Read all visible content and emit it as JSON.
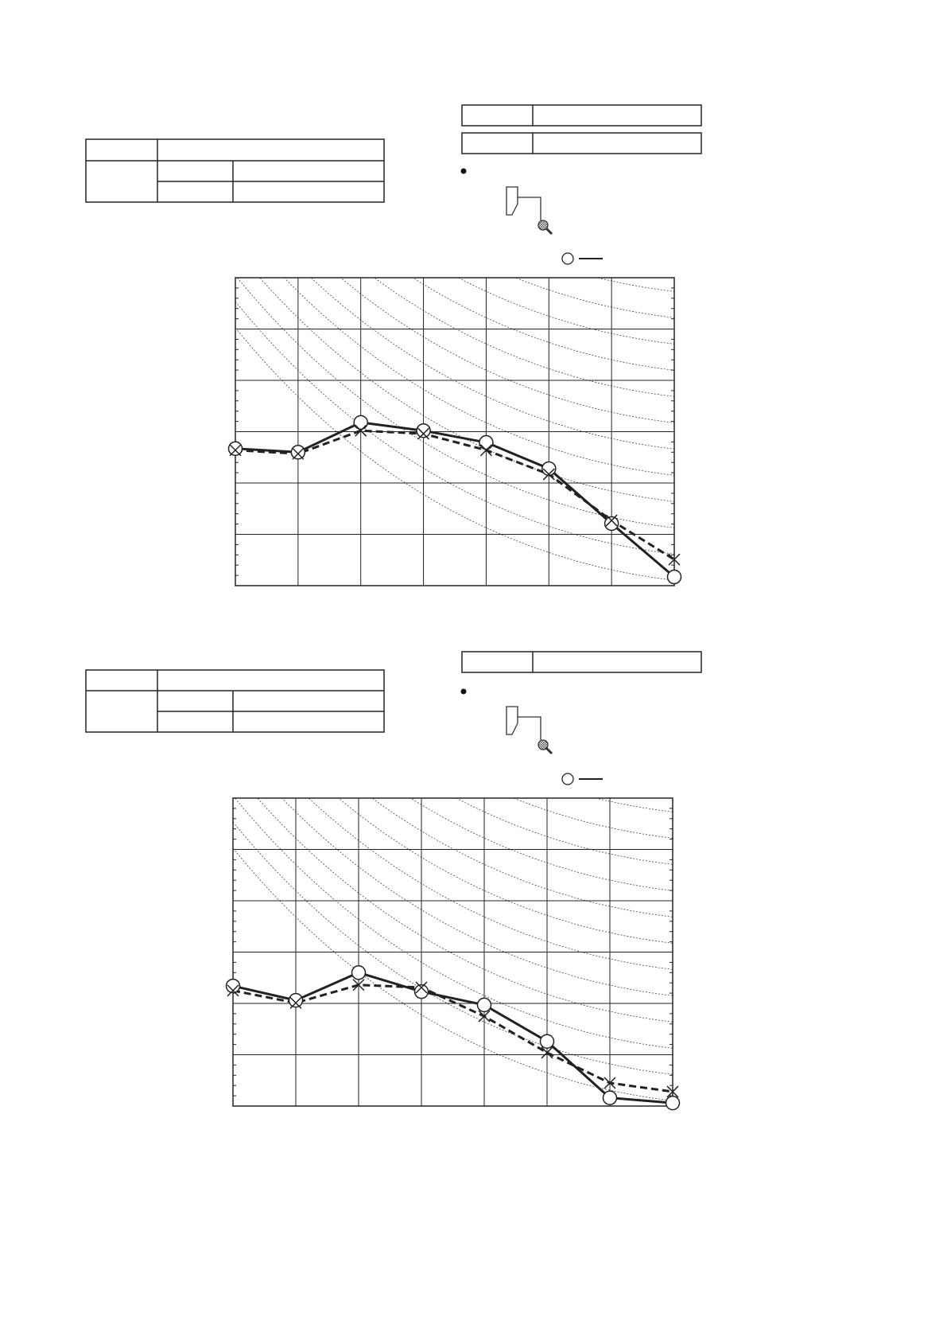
{
  "chart_data": [
    {
      "type": "line",
      "categories": [
        null,
        null,
        null,
        null,
        null,
        null,
        null,
        null
      ],
      "series": [
        {
          "color": "#222222",
          "dash": false,
          "marker": "circle",
          "values": [
            2.67,
            2.6,
            3.18,
            3.02,
            2.79,
            2.28,
            1.21,
            0.17
          ]
        },
        {
          "color": "#222222",
          "dash": true,
          "marker": "cross",
          "values": [
            2.64,
            2.57,
            3.02,
            2.96,
            2.64,
            2.17,
            1.27,
            0.51
          ]
        }
      ],
      "ylim": [
        0,
        6
      ],
      "yticks": [
        0,
        1,
        2,
        3,
        4,
        5,
        6
      ],
      "grid": true,
      "tick_labels": false,
      "minor_per_major": 5
    },
    {
      "type": "line",
      "categories": [
        null,
        null,
        null,
        null,
        null,
        null,
        null,
        null
      ],
      "series": [
        {
          "color": "#222222",
          "dash": false,
          "marker": "circle",
          "values": [
            2.34,
            2.06,
            2.6,
            2.23,
            1.97,
            1.26,
            0.16,
            0.06
          ]
        },
        {
          "color": "#222222",
          "dash": true,
          "marker": "cross",
          "values": [
            2.25,
            2.01,
            2.36,
            2.31,
            1.75,
            1.04,
            0.45,
            0.28
          ]
        }
      ],
      "ylim": [
        0,
        6
      ],
      "yticks": [
        0,
        1,
        2,
        3,
        4,
        5,
        6
      ],
      "grid": true,
      "tick_labels": false,
      "minor_per_major": 5
    }
  ]
}
